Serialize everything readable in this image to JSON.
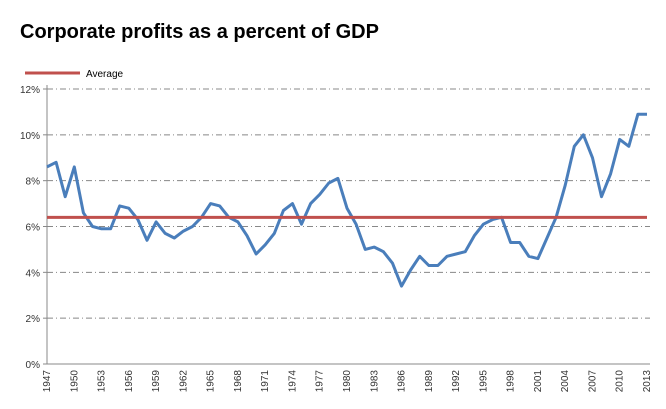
{
  "chart_data": {
    "type": "line",
    "title": "Corporate profits as a percent of GDP",
    "xlabel": "",
    "ylabel": "",
    "ylim": [
      0,
      12
    ],
    "y_ticks": [
      "0%",
      "2%",
      "4%",
      "6%",
      "8%",
      "10%",
      "12%"
    ],
    "x_tick_labels": [
      "1947",
      "1950",
      "1953",
      "1956",
      "1959",
      "1962",
      "1965",
      "1968",
      "1971",
      "1974",
      "1977",
      "1980",
      "1983",
      "1986",
      "1989",
      "1992",
      "1995",
      "1998",
      "2001",
      "2004",
      "2007",
      "2010",
      "2013"
    ],
    "grid": "horizontal dash-dot",
    "legend": "top-left",
    "x": [
      1947,
      1948,
      1949,
      1950,
      1951,
      1952,
      1953,
      1954,
      1955,
      1956,
      1957,
      1958,
      1959,
      1960,
      1961,
      1962,
      1963,
      1964,
      1965,
      1966,
      1967,
      1968,
      1969,
      1970,
      1971,
      1972,
      1973,
      1974,
      1975,
      1976,
      1977,
      1978,
      1979,
      1980,
      1981,
      1982,
      1983,
      1984,
      1985,
      1986,
      1987,
      1988,
      1989,
      1990,
      1991,
      1992,
      1993,
      1994,
      1995,
      1996,
      1997,
      1998,
      1999,
      2000,
      2001,
      2002,
      2003,
      2004,
      2005,
      2006,
      2007,
      2008,
      2009,
      2010,
      2011,
      2012,
      2013
    ],
    "series": [
      {
        "values": [
          8.6,
          8.8,
          7.3,
          8.6,
          6.6,
          6.0,
          5.9,
          5.9,
          6.9,
          6.8,
          6.3,
          5.4,
          6.2,
          5.7,
          5.5,
          5.8,
          6.0,
          6.4,
          7.0,
          6.9,
          6.4,
          6.2,
          5.6,
          4.8,
          5.2,
          5.7,
          6.7,
          7.0,
          6.1,
          7.0,
          7.4,
          7.9,
          8.1,
          6.8,
          6.1,
          5.0,
          5.1,
          4.9,
          4.4,
          3.4,
          4.1,
          4.7,
          4.3,
          4.3,
          4.7,
          4.8,
          4.9,
          5.6,
          6.1,
          6.3,
          6.4,
          5.3,
          5.3,
          4.7,
          4.6,
          5.5,
          6.4,
          7.8,
          9.5,
          10.0,
          9.0,
          7.3,
          8.3,
          9.8,
          9.5,
          10.9,
          10.9
        ],
        "color": "#4a7ebb"
      },
      {
        "name": "Average",
        "value": 6.4,
        "color": "#c0504d"
      }
    ]
  }
}
